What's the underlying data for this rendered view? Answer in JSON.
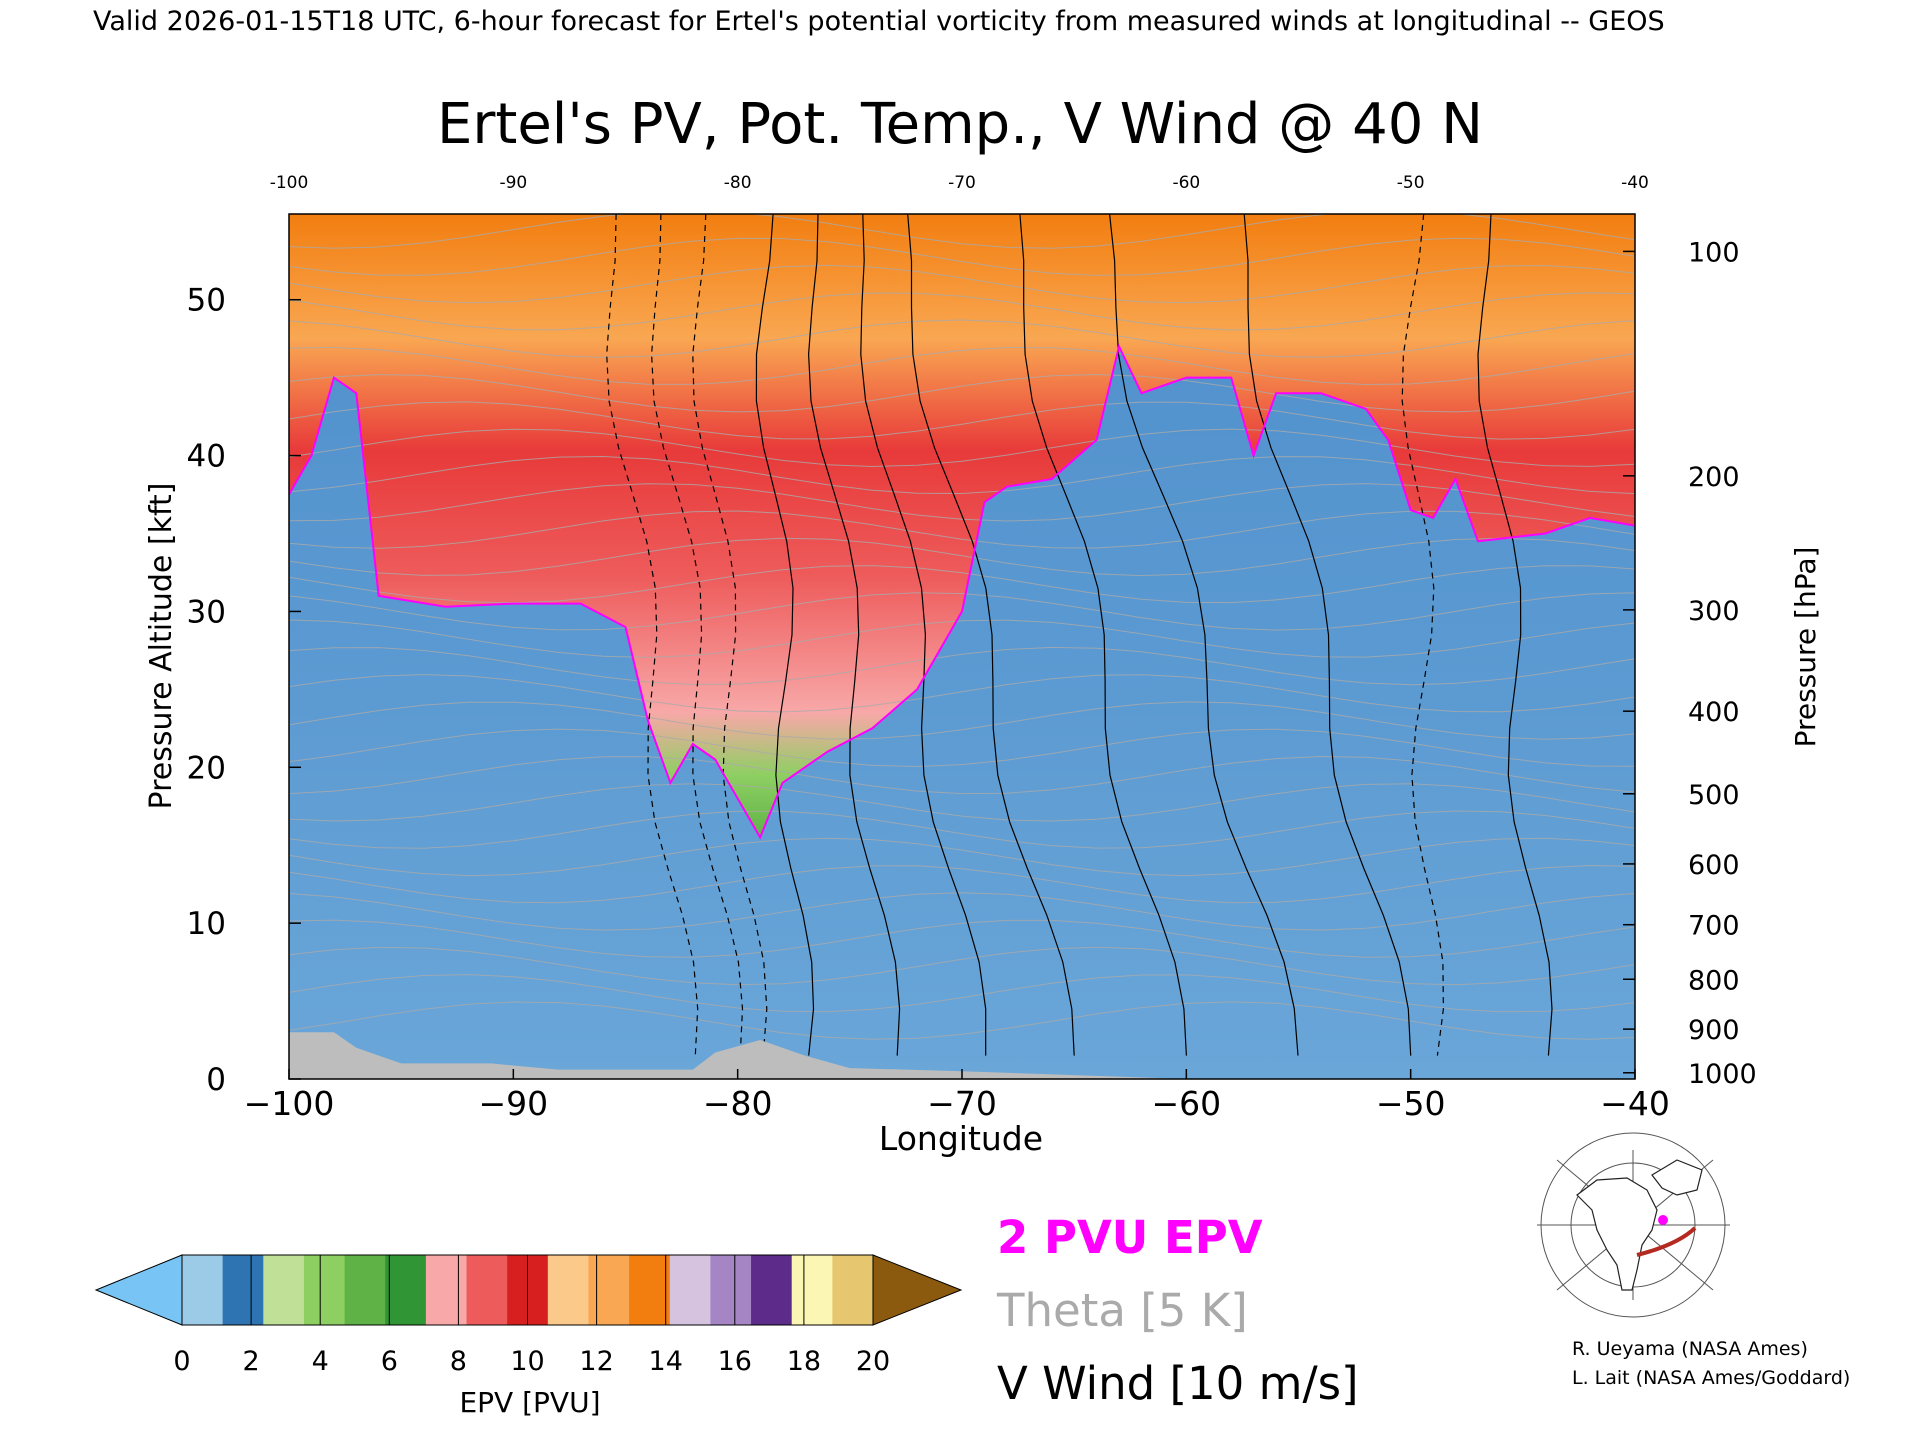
{
  "header": "Valid 2026-01-15T18 UTC, 6-hour forecast for Ertel's potential vorticity from measured winds at longitudinal -- GEOS",
  "chart_data": {
    "type": "heatmap",
    "title": "Ertel's PV, Pot. Temp., V Wind @ 40 N",
    "xlabel": "Longitude",
    "ylabel": "Pressure Altitude [kft]",
    "y2label": "Pressure [hPa]",
    "xlim": [
      -100,
      -40
    ],
    "ylim": [
      0,
      55.5
    ],
    "x_ticks": [
      -100,
      -90,
      -80,
      -70,
      -60,
      -50,
      -40
    ],
    "x_tick_labels": [
      "−100",
      "−90",
      "−80",
      "−70",
      "−60",
      "−50",
      "−40"
    ],
    "x_top_tick_labels": [
      "-100",
      "-90",
      "-80",
      "-70",
      "-60",
      "-50",
      "-40"
    ],
    "y_ticks": [
      0,
      10,
      20,
      30,
      40,
      50
    ],
    "pressure_ticks": [
      {
        "hPa": "100",
        "kft": 53.1
      },
      {
        "hPa": "200",
        "kft": 38.7
      },
      {
        "hPa": "300",
        "kft": 30.1
      },
      {
        "hPa": "400",
        "kft": 23.6
      },
      {
        "hPa": "500",
        "kft": 18.3
      },
      {
        "hPa": "600",
        "kft": 13.8
      },
      {
        "hPa": "700",
        "kft": 9.9
      },
      {
        "hPa": "800",
        "kft": 6.4
      },
      {
        "hPa": "900",
        "kft": 3.2
      },
      {
        "hPa": "1000",
        "kft": 0.4
      }
    ],
    "pv2_tropopause_kft": [
      [
        -100,
        37.5
      ],
      [
        -99,
        40
      ],
      [
        -98,
        45
      ],
      [
        -97,
        44
      ],
      [
        -96,
        31
      ],
      [
        -93,
        30.3
      ],
      [
        -90,
        30.5
      ],
      [
        -87,
        30.5
      ],
      [
        -85,
        29
      ],
      [
        -84,
        23
      ],
      [
        -83,
        19
      ],
      [
        -82,
        21.5
      ],
      [
        -81,
        20.5
      ],
      [
        -80,
        18
      ],
      [
        -79,
        15.5
      ],
      [
        -78,
        19
      ],
      [
        -76,
        21
      ],
      [
        -74,
        22.5
      ],
      [
        -72,
        25
      ],
      [
        -70,
        30
      ],
      [
        -69,
        37
      ],
      [
        -68,
        38
      ],
      [
        -66,
        38.5
      ],
      [
        -64,
        41
      ],
      [
        -63,
        47
      ],
      [
        -62,
        44
      ],
      [
        -60,
        45
      ],
      [
        -58,
        45
      ],
      [
        -57,
        40
      ],
      [
        -56,
        44
      ],
      [
        -54,
        44
      ],
      [
        -52,
        43
      ],
      [
        -51,
        41
      ],
      [
        -50,
        36.5
      ],
      [
        -49,
        36
      ],
      [
        -48,
        38.5
      ],
      [
        -47,
        34.5
      ],
      [
        -44,
        35
      ],
      [
        -42,
        36
      ],
      [
        -40,
        35.5
      ]
    ],
    "labels": {
      "pv2": "2 PVU EPV",
      "theta": "Theta [5 K]",
      "wind": "V Wind [10 m/s]"
    },
    "colorbar": {
      "title": "EPV [PVU]",
      "ticks": [
        "0",
        "2",
        "4",
        "6",
        "8",
        "10",
        "12",
        "14",
        "16",
        "18",
        "20"
      ],
      "colors": [
        "#77c4f5",
        "#9ccbe8",
        "#2f74b2",
        "#c0e098",
        "#8ecf62",
        "#5fb346",
        "#2f9535",
        "#f8a8a8",
        "#ee5b5b",
        "#d81f1f",
        "#fbc98a",
        "#f9a752",
        "#f27e10",
        "#d5c3e0",
        "#a585c4",
        "#5d2b8a",
        "#fbf6b4",
        "#e6c770",
        "#8b5a0f"
      ]
    },
    "colors": {
      "pv2_line": "#ff00ff",
      "theta_lines": "#aaaaaa",
      "wind_lines": "#000000",
      "terrain": "#bdbdbd",
      "troposphere": "#5d9bd2",
      "stratosphere_low": "#5eb444",
      "stratosphere_mid": "#ee5757",
      "stratosphere_high": "#f89a2a"
    }
  },
  "credits": {
    "line1": "R. Ueyama (NASA Ames)",
    "line2": "L. Lait (NASA Ames/Goddard)"
  }
}
